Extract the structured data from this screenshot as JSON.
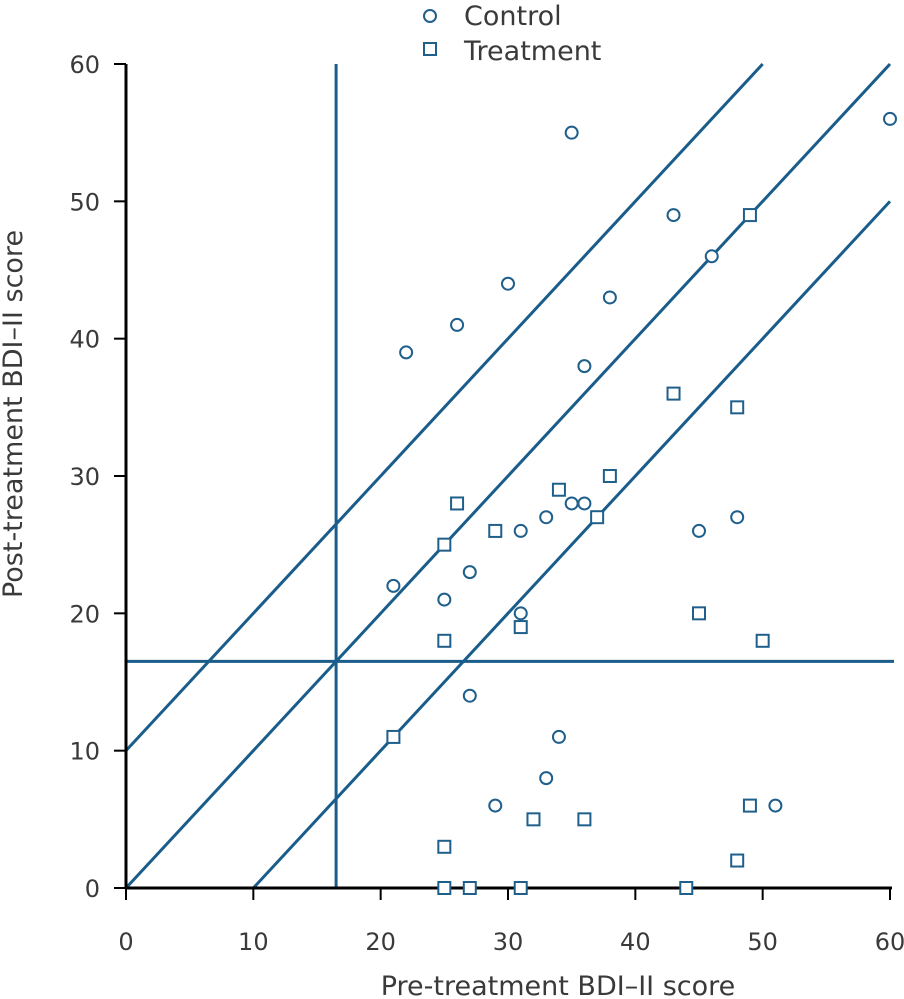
{
  "chart_data": {
    "type": "scatter",
    "title": "",
    "xlabel": "Pre-treatment BDI–II score",
    "ylabel": "Post-treatment BDI–II score",
    "xlim": [
      0,
      60
    ],
    "ylim": [
      0,
      60
    ],
    "xticks": [
      0,
      10,
      20,
      30,
      40,
      50,
      60
    ],
    "yticks": [
      0,
      10,
      20,
      30,
      40,
      50,
      60
    ],
    "grid": false,
    "legend_position": "top-center",
    "colors": {
      "marker": "#1f5f8b",
      "line": "#1a5c8a",
      "axis": "#000000"
    },
    "series": [
      {
        "name": "Control",
        "marker": "circle",
        "points": [
          [
            22,
            39
          ],
          [
            26,
            41
          ],
          [
            30,
            44
          ],
          [
            35,
            55
          ],
          [
            38,
            43
          ],
          [
            36,
            38
          ],
          [
            43,
            49
          ],
          [
            46,
            46
          ],
          [
            60,
            56
          ],
          [
            21,
            22
          ],
          [
            25,
            21
          ],
          [
            27,
            23
          ],
          [
            31,
            26
          ],
          [
            31,
            20
          ],
          [
            33,
            27
          ],
          [
            35,
            28
          ],
          [
            36,
            28
          ],
          [
            45,
            26
          ],
          [
            48,
            27
          ],
          [
            27,
            14
          ],
          [
            34,
            11
          ],
          [
            33,
            8
          ],
          [
            29,
            6
          ],
          [
            51,
            6
          ]
        ]
      },
      {
        "name": "Treatment",
        "marker": "square",
        "points": [
          [
            49,
            49
          ],
          [
            43,
            36
          ],
          [
            48,
            35
          ],
          [
            38,
            30
          ],
          [
            34,
            29
          ],
          [
            26,
            28
          ],
          [
            29,
            26
          ],
          [
            25,
            25
          ],
          [
            37,
            27
          ],
          [
            31,
            19
          ],
          [
            25,
            18
          ],
          [
            45,
            20
          ],
          [
            50,
            18
          ],
          [
            21,
            11
          ],
          [
            25,
            3
          ],
          [
            32,
            5
          ],
          [
            36,
            5
          ],
          [
            49,
            6
          ],
          [
            48,
            2
          ],
          [
            25,
            0
          ],
          [
            27,
            0
          ],
          [
            31,
            0
          ],
          [
            44,
            0
          ]
        ]
      }
    ],
    "reference_lines": [
      {
        "kind": "vertical",
        "x": 16.5
      },
      {
        "kind": "horizontal",
        "y": 16.5
      },
      {
        "kind": "diagonal",
        "from": [
          0,
          10
        ],
        "to": [
          50,
          60
        ]
      },
      {
        "kind": "diagonal",
        "from": [
          0,
          0
        ],
        "to": [
          60,
          60
        ]
      },
      {
        "kind": "diagonal",
        "from": [
          10,
          0
        ],
        "to": [
          60,
          50
        ]
      }
    ]
  }
}
